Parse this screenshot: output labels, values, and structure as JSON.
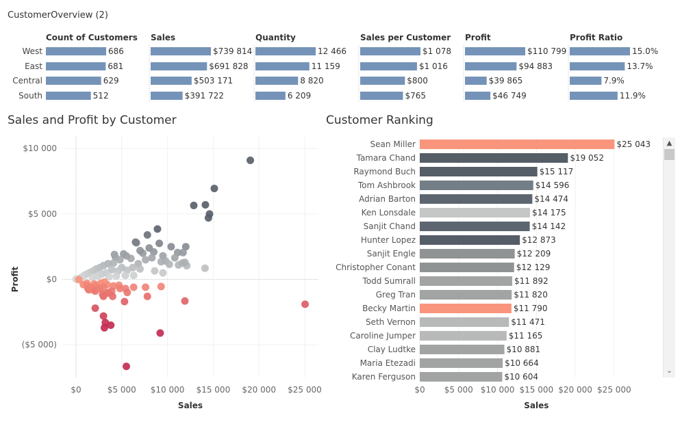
{
  "dashboard": {
    "title": "CustomerOverview (2)"
  },
  "colors": {
    "bar_blue": "#7593b8",
    "dark": "#555d67",
    "slate": "#737e87",
    "gray_mid": "#a2a4a4",
    "gray_light": "#c5c6c6",
    "salmon": "#f9957d",
    "red_dark": "#c2284f"
  },
  "scatter": {
    "title": "Sales and Profit by Customer"
  },
  "ranking": {
    "title": "Customer Ranking",
    "scroll_up": "▲",
    "scroll_down": "⌄"
  },
  "chart_data": [
    {
      "type": "bar",
      "title": "",
      "regions": [
        "West",
        "East",
        "Central",
        "South"
      ],
      "measures": [
        {
          "name": "Count of Customers",
          "values": [
            686,
            681,
            629,
            512
          ],
          "labels": [
            "686",
            "681",
            "629",
            "512"
          ]
        },
        {
          "name": "Sales",
          "values": [
            739814,
            691828,
            503171,
            391722
          ],
          "labels": [
            "$739 814",
            "$691 828",
            "$503 171",
            "$391 722"
          ]
        },
        {
          "name": "Quantity",
          "values": [
            12466,
            11159,
            8820,
            6209
          ],
          "labels": [
            "12 466",
            "11 159",
            "8 820",
            "6 209"
          ]
        },
        {
          "name": "Sales per Customer",
          "values": [
            1078,
            1016,
            800,
            765
          ],
          "labels": [
            "$1 078",
            "$1 016",
            "$800",
            "$765"
          ]
        },
        {
          "name": "Profit",
          "values": [
            110799,
            94883,
            39865,
            46749
          ],
          "labels": [
            "$110 799",
            "$94 883",
            "$39 865",
            "$46 749"
          ]
        },
        {
          "name": "Profit Ratio",
          "values": [
            15.0,
            13.7,
            7.9,
            11.9
          ],
          "labels": [
            "15.0%",
            "13.7%",
            "7.9%",
            "11.9%"
          ]
        }
      ]
    },
    {
      "type": "scatter",
      "title": "Sales and Profit by Customer",
      "xlabel": "Sales",
      "ylabel": "Profit",
      "xlim": [
        -1500,
        26500
      ],
      "ylim": [
        -7500,
        10900
      ],
      "xticks": [
        {
          "v": 0,
          "l": "$0"
        },
        {
          "v": 5000,
          "l": "$5 000"
        },
        {
          "v": 10000,
          "l": "$10 000"
        },
        {
          "v": 15000,
          "l": "$15 000"
        },
        {
          "v": 20000,
          "l": "$20 000"
        },
        {
          "v": 25000,
          "l": "$25 000"
        }
      ],
      "yticks": [
        {
          "v": 10000,
          "l": "$10 000"
        },
        {
          "v": 5000,
          "l": "$5 000"
        },
        {
          "v": 0,
          "l": "$0"
        },
        {
          "v": -5000,
          "l": "($5 000)"
        }
      ],
      "points": [
        [
          19052,
          9100
        ],
        [
          15117,
          6950
        ],
        [
          12873,
          5650
        ],
        [
          14142,
          5700
        ],
        [
          14596,
          5000
        ],
        [
          14474,
          4700
        ],
        [
          8900,
          3850
        ],
        [
          7800,
          3400
        ],
        [
          6500,
          2850
        ],
        [
          6600,
          2800
        ],
        [
          4200,
          1900
        ],
        [
          4300,
          1700
        ],
        [
          5200,
          1950
        ],
        [
          7300,
          2000
        ],
        [
          8000,
          2400
        ],
        [
          9100,
          2750
        ],
        [
          10400,
          2500
        ],
        [
          12000,
          2500
        ],
        [
          11100,
          2050
        ],
        [
          11700,
          2050
        ],
        [
          9500,
          1800
        ],
        [
          8500,
          2100
        ],
        [
          7000,
          2200
        ],
        [
          6000,
          1600
        ],
        [
          5500,
          1800
        ],
        [
          4800,
          1500
        ],
        [
          4100,
          1250
        ],
        [
          3500,
          1200
        ],
        [
          3000,
          1050
        ],
        [
          2600,
          900
        ],
        [
          2200,
          800
        ],
        [
          1900,
          650
        ],
        [
          1600,
          550
        ],
        [
          1300,
          450
        ],
        [
          1000,
          350
        ],
        [
          800,
          250
        ],
        [
          600,
          150
        ],
        [
          400,
          80
        ],
        [
          200,
          30
        ],
        [
          0,
          20
        ],
        [
          100,
          0
        ],
        [
          300,
          -20
        ],
        [
          7600,
          1500
        ],
        [
          6800,
          1200
        ],
        [
          8300,
          1650
        ],
        [
          9800,
          1400
        ],
        [
          11200,
          1100
        ],
        [
          10800,
          1650
        ],
        [
          11600,
          1250
        ],
        [
          6200,
          900
        ],
        [
          5600,
          700
        ],
        [
          5000,
          900
        ],
        [
          4600,
          650
        ],
        [
          3900,
          750
        ],
        [
          3300,
          500
        ],
        [
          2800,
          400
        ],
        [
          9300,
          1350
        ],
        [
          10200,
          1150
        ],
        [
          7000,
          800
        ],
        [
          8600,
          650
        ],
        [
          9500,
          500
        ],
        [
          6300,
          300
        ],
        [
          5400,
          300
        ],
        [
          4400,
          250
        ],
        [
          3600,
          200
        ],
        [
          2400,
          250
        ],
        [
          1800,
          150
        ],
        [
          12100,
          1050
        ],
        [
          14100,
          850
        ],
        [
          11900,
          1300
        ],
        [
          2000,
          -350
        ],
        [
          1200,
          -300
        ],
        [
          800,
          -400
        ],
        [
          1500,
          -600
        ],
        [
          2200,
          -500
        ],
        [
          2700,
          -300
        ],
        [
          3400,
          -400
        ],
        [
          4100,
          -500
        ],
        [
          4700,
          -450
        ],
        [
          5400,
          -700
        ],
        [
          6300,
          -600
        ],
        [
          7600,
          -600
        ],
        [
          9300,
          -550
        ],
        [
          3100,
          -200
        ],
        [
          3600,
          -1000
        ],
        [
          4800,
          -700
        ],
        [
          5600,
          -1000
        ],
        [
          2600,
          -700
        ],
        [
          1900,
          -800
        ],
        [
          1300,
          -700
        ],
        [
          3000,
          -600
        ],
        [
          3000,
          -1300
        ],
        [
          3900,
          -900
        ],
        [
          5300,
          -1700
        ],
        [
          4000,
          -1300
        ],
        [
          3400,
          -1050
        ],
        [
          7800,
          -1300
        ],
        [
          11900,
          -1650
        ],
        [
          25043,
          -1900
        ],
        [
          1200,
          -500
        ],
        [
          1400,
          -800
        ],
        [
          1600,
          -600
        ],
        [
          2100,
          -900
        ],
        [
          2500,
          -700
        ],
        [
          2900,
          -1150
        ],
        [
          2100,
          -2200
        ],
        [
          3000,
          -2800
        ],
        [
          3200,
          -3300
        ],
        [
          3100,
          -3700
        ],
        [
          3800,
          -3500
        ],
        [
          9200,
          -4100
        ],
        [
          5500,
          -6650
        ]
      ]
    },
    {
      "type": "bar",
      "title": "Customer Ranking",
      "xlabel": "Sales",
      "xlim": [
        0,
        31000
      ],
      "xticks": [
        {
          "v": 0,
          "l": "$0"
        },
        {
          "v": 5000,
          "l": "$5 000"
        },
        {
          "v": 10000,
          "l": "$10 000"
        },
        {
          "v": 15000,
          "l": "$15 000"
        },
        {
          "v": 20000,
          "l": "$20 000"
        },
        {
          "v": 25000,
          "l": "$25 000"
        }
      ],
      "customers": [
        {
          "name": "Sean Miller",
          "value": 25043,
          "label": "$25 043",
          "color": "#f9957d"
        },
        {
          "name": "Tamara Chand",
          "value": 19052,
          "label": "$19 052",
          "color": "#555d67"
        },
        {
          "name": "Raymond Buch",
          "value": 15117,
          "label": "$15 117",
          "color": "#555d67"
        },
        {
          "name": "Tom Ashbrook",
          "value": 14596,
          "label": "$14 596",
          "color": "#737e87"
        },
        {
          "name": "Adrian Barton",
          "value": 14474,
          "label": "$14 474",
          "color": "#5d6670"
        },
        {
          "name": "Ken Lonsdale",
          "value": 14175,
          "label": "$14 175",
          "color": "#c5c6c6"
        },
        {
          "name": "Sanjit Chand",
          "value": 14142,
          "label": "$14 142",
          "color": "#5d6670"
        },
        {
          "name": "Hunter Lopez",
          "value": 12873,
          "label": "$12 873",
          "color": "#555d67"
        },
        {
          "name": "Sanjit Engle",
          "value": 12209,
          "label": "$12 209",
          "color": "#8f9394"
        },
        {
          "name": "Christopher Conant",
          "value": 12129,
          "label": "$12 129",
          "color": "#8f9394"
        },
        {
          "name": "Todd Sumrall",
          "value": 11892,
          "label": "$11 892",
          "color": "#a2a4a4"
        },
        {
          "name": "Greg Tran",
          "value": 11820,
          "label": "$11 820",
          "color": "#a2a4a4"
        },
        {
          "name": "Becky Martin",
          "value": 11790,
          "label": "$11 790",
          "color": "#f9957d"
        },
        {
          "name": "Seth Vernon",
          "value": 11471,
          "label": "$11 471",
          "color": "#b8b9b9"
        },
        {
          "name": "Caroline Jumper",
          "value": 11165,
          "label": "$11 165",
          "color": "#b8b9b9"
        },
        {
          "name": "Clay Ludtke",
          "value": 10881,
          "label": "$10 881",
          "color": "#a2a4a4"
        },
        {
          "name": "Maria Etezadi",
          "value": 10664,
          "label": "$10 664",
          "color": "#a2a4a4"
        },
        {
          "name": "Karen Ferguson",
          "value": 10604,
          "label": "$10 604",
          "color": "#a2a4a4"
        }
      ]
    }
  ]
}
